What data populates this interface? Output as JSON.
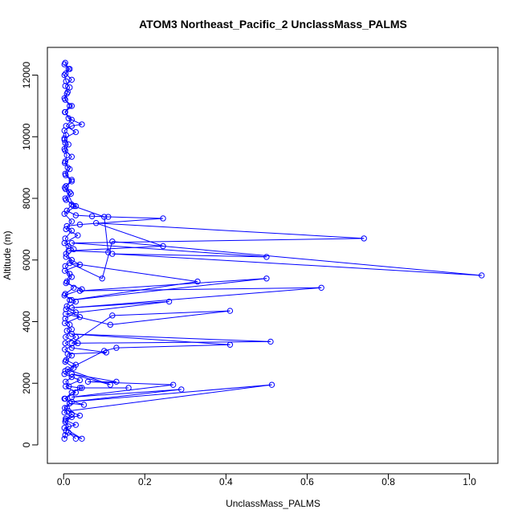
{
  "chart_data": {
    "type": "line",
    "title": "ATOM3 Northeast_Pacific_2 UnclassMass_PALMS",
    "xlabel": "UnclassMass_PALMS",
    "ylabel": "Altitude (m)",
    "xlim": [
      -0.04,
      1.07
    ],
    "ylim": [
      -600,
      12900
    ],
    "xticks": [
      0.0,
      0.2,
      0.4,
      0.6,
      0.8,
      1.0
    ],
    "xtick_labels": [
      "0.0",
      "0.2",
      "0.4",
      "0.6",
      "0.8",
      "1.0"
    ],
    "yticks": [
      0,
      2000,
      4000,
      6000,
      8000,
      10000,
      12000
    ],
    "ytick_labels": [
      "0",
      "2000",
      "4000",
      "6000",
      "8000",
      "10000",
      "12000"
    ],
    "grid": false,
    "color": "#0000ff",
    "marker": "open-circle",
    "series": [
      {
        "name": "",
        "points": [
          [
            0.002,
            200
          ],
          [
            0.004,
            320
          ],
          [
            0.006,
            450
          ],
          [
            0.012,
            600
          ],
          [
            0.004,
            750
          ],
          [
            0.02,
            900
          ],
          [
            0.002,
            1050
          ],
          [
            0.008,
            1200
          ],
          [
            0.015,
            1350
          ],
          [
            0.004,
            1500
          ],
          [
            0.02,
            1700
          ],
          [
            0.045,
            1850
          ],
          [
            0.16,
            1850
          ],
          [
            0.04,
            1850
          ],
          [
            0.013,
            1900
          ],
          [
            0.005,
            2050
          ],
          [
            0.02,
            2200
          ],
          [
            0.004,
            2400
          ],
          [
            0.03,
            2600
          ],
          [
            0.006,
            2750
          ],
          [
            0.01,
            2950
          ],
          [
            0.105,
            3000
          ],
          [
            0.02,
            3150
          ],
          [
            0.004,
            3300
          ],
          [
            0.03,
            3500
          ],
          [
            0.008,
            3700
          ],
          [
            0.015,
            3900
          ],
          [
            0.004,
            4100
          ],
          [
            0.03,
            4300
          ],
          [
            0.008,
            4500
          ],
          [
            0.015,
            4700
          ],
          [
            0.004,
            4900
          ],
          [
            0.025,
            5100
          ],
          [
            0.008,
            5300
          ],
          [
            0.015,
            5550
          ],
          [
            0.004,
            5800
          ],
          [
            0.02,
            6000
          ],
          [
            0.006,
            6200
          ],
          [
            0.012,
            6450
          ],
          [
            0.004,
            6700
          ],
          [
            0.02,
            6950
          ],
          [
            0.008,
            7100
          ],
          [
            0.04,
            7150
          ],
          [
            0.245,
            7350
          ],
          [
            0.11,
            7400
          ],
          [
            0.07,
            7420
          ],
          [
            0.03,
            7450
          ],
          [
            0.008,
            7600
          ],
          [
            0.02,
            7800
          ],
          [
            0.004,
            8000
          ],
          [
            0.015,
            8200
          ],
          [
            0.006,
            8400
          ],
          [
            0.02,
            8600
          ],
          [
            0.004,
            8800
          ],
          [
            0.01,
            9000
          ],
          [
            0.004,
            9200
          ],
          [
            0.008,
            9400
          ],
          [
            0.002,
            9600
          ],
          [
            0.004,
            9800
          ],
          [
            0.002,
            9900
          ],
          [
            0.006,
            10050
          ],
          [
            0.002,
            10200
          ],
          [
            0.02,
            10350
          ],
          [
            0.045,
            10400
          ],
          [
            0.012,
            10600
          ],
          [
            0.004,
            10800
          ],
          [
            0.02,
            11000
          ],
          [
            0.004,
            11200
          ],
          [
            0.008,
            11400
          ],
          [
            0.015,
            11600
          ],
          [
            0.006,
            11800
          ],
          [
            0.002,
            12000
          ],
          [
            0.012,
            12200
          ],
          [
            0.004,
            12400
          ]
        ]
      },
      {
        "name": "",
        "points": [
          [
            0.005,
            850
          ],
          [
            0.04,
            950
          ],
          [
            0.012,
            1100
          ],
          [
            0.513,
            1950
          ],
          [
            0.02,
            1400
          ],
          [
            0.29,
            1800
          ],
          [
            0.02,
            1550
          ],
          [
            0.27,
            1950
          ],
          [
            0.06,
            2050
          ],
          [
            0.13,
            2050
          ],
          [
            0.02,
            2300
          ],
          [
            0.115,
            1950
          ],
          [
            0.01,
            2450
          ],
          [
            0.1,
            3050
          ],
          [
            0.13,
            3150
          ],
          [
            0.41,
            3250
          ],
          [
            0.02,
            3600
          ],
          [
            0.51,
            3350
          ],
          [
            0.02,
            3300
          ],
          [
            0.12,
            4200
          ],
          [
            0.41,
            4350
          ],
          [
            0.115,
            3900
          ],
          [
            0.005,
            4250
          ],
          [
            0.26,
            4650
          ],
          [
            0.02,
            4450
          ],
          [
            0.635,
            5100
          ],
          [
            0.04,
            5000
          ],
          [
            0.5,
            5400
          ],
          [
            0.02,
            4700
          ],
          [
            0.33,
            5300
          ],
          [
            0.015,
            5900
          ],
          [
            0.095,
            5400
          ],
          [
            0.12,
            6600
          ],
          [
            1.03,
            5500
          ],
          [
            0.12,
            6200
          ],
          [
            0.5,
            6100
          ],
          [
            0.02,
            6550
          ],
          [
            0.74,
            6700
          ],
          [
            0.08,
            7200
          ],
          [
            0.245,
            6450
          ],
          [
            0.012,
            6300
          ],
          [
            0.11,
            6250
          ],
          [
            0.1,
            7400
          ],
          [
            0.025,
            7750
          ],
          [
            0.005,
            8300
          ]
        ]
      },
      {
        "name": "",
        "points": [
          [
            0.03,
            200
          ],
          [
            0.012,
            400
          ],
          [
            0.045,
            200
          ],
          [
            0.002,
            550
          ],
          [
            0.03,
            650
          ],
          [
            0.005,
            800
          ],
          [
            0.02,
            1000
          ],
          [
            0.003,
            1200
          ],
          [
            0.015,
            1350
          ],
          [
            0.05,
            1300
          ],
          [
            0.002,
            1500
          ],
          [
            0.03,
            1700
          ],
          [
            0.005,
            1900
          ],
          [
            0.04,
            2100
          ],
          [
            0.002,
            2300
          ],
          [
            0.025,
            2500
          ],
          [
            0.004,
            2700
          ],
          [
            0.02,
            2900
          ],
          [
            0.003,
            3100
          ],
          [
            0.035,
            3300
          ],
          [
            0.005,
            3500
          ],
          [
            0.02,
            3750
          ],
          [
            0.003,
            3950
          ],
          [
            0.04,
            4150
          ],
          [
            0.006,
            4400
          ],
          [
            0.03,
            4650
          ],
          [
            0.002,
            4850
          ],
          [
            0.045,
            5050
          ],
          [
            0.006,
            5250
          ],
          [
            0.02,
            5450
          ],
          [
            0.003,
            5650
          ],
          [
            0.04,
            5850
          ],
          [
            0.006,
            6100
          ],
          [
            0.025,
            6350
          ],
          [
            0.002,
            6550
          ],
          [
            0.035,
            6800
          ],
          [
            0.006,
            7000
          ],
          [
            0.02,
            7250
          ],
          [
            0.002,
            7500
          ],
          [
            0.03,
            7750
          ],
          [
            0.006,
            7950
          ],
          [
            0.018,
            8150
          ],
          [
            0.003,
            8350
          ],
          [
            0.02,
            8550
          ],
          [
            0.005,
            8750
          ],
          [
            0.015,
            8950
          ],
          [
            0.003,
            9150
          ],
          [
            0.02,
            9350
          ],
          [
            0.004,
            9550
          ],
          [
            0.012,
            9750
          ],
          [
            0.002,
            9950
          ],
          [
            0.03,
            10150
          ],
          [
            0.006,
            10350
          ],
          [
            0.02,
            10550
          ],
          [
            0.003,
            10800
          ],
          [
            0.015,
            11000
          ],
          [
            0.002,
            11250
          ],
          [
            0.01,
            11450
          ],
          [
            0.004,
            11650
          ],
          [
            0.02,
            11850
          ],
          [
            0.005,
            12050
          ],
          [
            0.015,
            12200
          ],
          [
            0.002,
            12350
          ]
        ]
      }
    ]
  }
}
